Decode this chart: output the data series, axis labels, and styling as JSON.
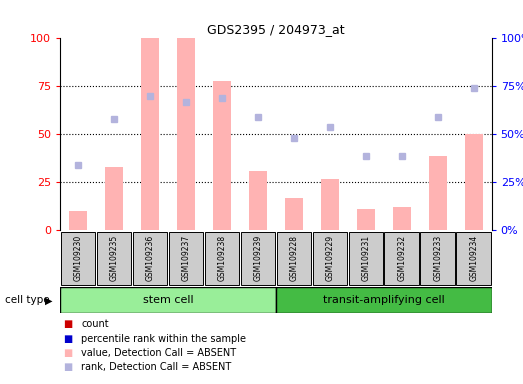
{
  "title": "GDS2395 / 204973_at",
  "samples": [
    "GSM109230",
    "GSM109235",
    "GSM109236",
    "GSM109237",
    "GSM109238",
    "GSM109239",
    "GSM109228",
    "GSM109229",
    "GSM109231",
    "GSM109232",
    "GSM109233",
    "GSM109234"
  ],
  "bar_values": [
    10,
    33,
    100,
    100,
    78,
    31,
    17,
    27,
    11,
    12,
    39,
    50
  ],
  "dot_values": [
    34,
    58,
    70,
    67,
    69,
    59,
    48,
    54,
    39,
    39,
    59,
    74
  ],
  "bar_color_absent": "#ffb3b3",
  "dot_color_absent": "#b3b3dd",
  "yticks": [
    0,
    25,
    50,
    75,
    100
  ],
  "cell_types": [
    "stem cell",
    "transit-amplifying cell"
  ],
  "stem_cell_count": 6,
  "transit_cell_count": 6,
  "cell_type_label": "cell type",
  "legend_items": [
    {
      "label": "count",
      "color": "#cc0000"
    },
    {
      "label": "percentile rank within the sample",
      "color": "#0000cc"
    },
    {
      "label": "value, Detection Call = ABSENT",
      "color": "#ffb3b3"
    },
    {
      "label": "rank, Detection Call = ABSENT",
      "color": "#b3b3dd"
    }
  ],
  "stem_cell_color": "#99ee99",
  "transit_cell_color": "#44bb44",
  "label_bg": "#cccccc",
  "fig_width": 5.23,
  "fig_height": 3.84,
  "dpi": 100
}
